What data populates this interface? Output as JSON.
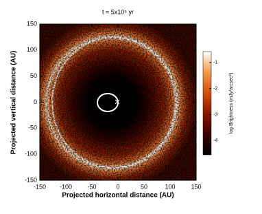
{
  "chart_data": {
    "type": "image",
    "title": "t = 5x10⁵ yr",
    "x_label": "Projected horizontal distance (AU)",
    "y_label": "Projected vertical distance (AU)",
    "xlim": [
      -150,
      150
    ],
    "ylim": [
      -150,
      150
    ],
    "xticks": [
      -150,
      -100,
      -50,
      0,
      50,
      100,
      150
    ],
    "yticks": [
      -150,
      -100,
      -50,
      0,
      50,
      100,
      150
    ],
    "colorbar": {
      "label": "log Brightness (mJy/arcsec²)",
      "clim": [
        -4.55,
        -0.58
      ],
      "ticks": [
        -1,
        -2,
        -3,
        -4
      ],
      "colors": [
        "#000000",
        "#3a0000",
        "#8a1500",
        "#d0500a",
        "#f39a4a",
        "#ffffff"
      ]
    }
  }
}
